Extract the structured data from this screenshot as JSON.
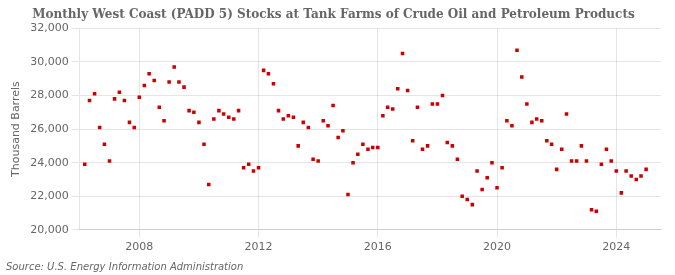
{
  "chart_data": {
    "type": "scatter",
    "title": "Monthly West Coast (PADD 5) Stocks at Tank Farms of Crude Oil and Petroleum Products",
    "ylabel": "Thousand Barrels",
    "annotations": [
      "Source: U.S. Energy Information Administration"
    ],
    "color": "#cc0000",
    "marker": "square",
    "grid": true,
    "xlim": [
      2006.0,
      2025.5
    ],
    "xticks": [
      2008,
      2012,
      2016,
      2020,
      2024
    ],
    "ylim": [
      20000,
      32000
    ],
    "yticks": [
      {
        "value": 20000,
        "label": "20,000"
      },
      {
        "value": 22000,
        "label": "22,000"
      },
      {
        "value": 24000,
        "label": "24,000"
      },
      {
        "value": 26000,
        "label": "26,000"
      },
      {
        "value": 28000,
        "label": "28,000"
      },
      {
        "value": 30000,
        "label": "30,000"
      },
      {
        "value": 32000,
        "label": "32,000"
      }
    ],
    "x": [
      2006.17,
      2006.33,
      2006.5,
      2006.67,
      2006.83,
      2007.0,
      2007.17,
      2007.33,
      2007.5,
      2007.67,
      2007.83,
      2008.0,
      2008.17,
      2008.33,
      2008.5,
      2008.67,
      2008.83,
      2009.0,
      2009.17,
      2009.33,
      2009.5,
      2009.67,
      2009.83,
      2010.0,
      2010.17,
      2010.33,
      2010.5,
      2010.67,
      2010.83,
      2011.0,
      2011.17,
      2011.33,
      2011.5,
      2011.67,
      2011.83,
      2012.0,
      2012.17,
      2012.33,
      2012.5,
      2012.67,
      2012.83,
      2013.0,
      2013.17,
      2013.33,
      2013.5,
      2013.67,
      2013.83,
      2014.0,
      2014.17,
      2014.33,
      2014.5,
      2014.67,
      2014.83,
      2015.0,
      2015.17,
      2015.33,
      2015.5,
      2015.67,
      2015.83,
      2016.0,
      2016.17,
      2016.33,
      2016.5,
      2016.67,
      2016.83,
      2017.0,
      2017.17,
      2017.33,
      2017.5,
      2017.67,
      2017.83,
      2018.0,
      2018.17,
      2018.33,
      2018.5,
      2018.67,
      2018.83,
      2019.0,
      2019.17,
      2019.33,
      2019.5,
      2019.67,
      2019.83,
      2020.0,
      2020.17,
      2020.33,
      2020.5,
      2020.67,
      2020.83,
      2021.0,
      2021.17,
      2021.33,
      2021.5,
      2021.67,
      2021.83,
      2022.0,
      2022.17,
      2022.33,
      2022.5,
      2022.67,
      2022.83,
      2023.0,
      2023.17,
      2023.33,
      2023.5,
      2023.67,
      2023.83,
      2024.0,
      2024.17,
      2024.33,
      2024.5,
      2024.67,
      2024.83,
      2025.0
    ],
    "values": [
      23900,
      27700,
      28100,
      26100,
      25100,
      24100,
      27800,
      28200,
      27700,
      26400,
      26100,
      27900,
      28600,
      29300,
      28900,
      27300,
      26500,
      28800,
      29700,
      28800,
      28500,
      27100,
      27000,
      26400,
      25100,
      22700,
      26600,
      27100,
      26900,
      26700,
      26600,
      27100,
      23700,
      23900,
      23500,
      23700,
      29500,
      29300,
      28700,
      27100,
      26600,
      26800,
      26700,
      25000,
      26400,
      26100,
      24200,
      24100,
      26500,
      26200,
      27400,
      25500,
      25900,
      22100,
      24000,
      24500,
      25100,
      24800,
      24900,
      24900,
      26800,
      27300,
      27200,
      28400,
      30500,
      28300,
      25300,
      27300,
      24800,
      25000,
      27500,
      27500,
      28000,
      25200,
      25000,
      24200,
      22000,
      21800,
      21500,
      23500,
      22400,
      23100,
      24000,
      22500,
      23700,
      26500,
      26200,
      30700,
      29100,
      27500,
      26400,
      26600,
      26500,
      25300,
      25100,
      23600,
      24800,
      26900,
      24100,
      24100,
      25000,
      24100,
      21200,
      21100,
      23900,
      24800,
      24100,
      23500,
      22200,
      23500,
      23200,
      23000,
      23200,
      23600
    ]
  }
}
